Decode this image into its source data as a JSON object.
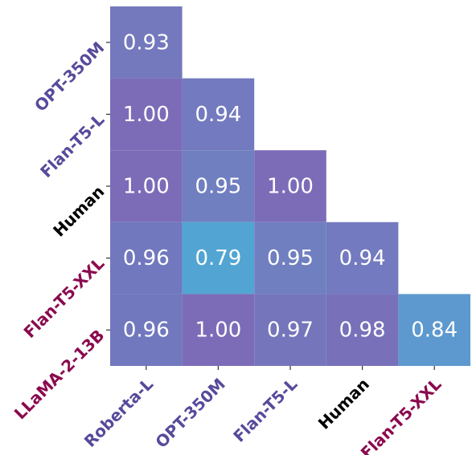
{
  "chart_data": {
    "type": "heatmap",
    "title": "",
    "xlabel": "",
    "ylabel": "",
    "x_categories": [
      "Roberta-L",
      "OPT-350M",
      "Flan-T5-L",
      "Human",
      "Flan-T5-XXL"
    ],
    "y_categories": [
      "OPT-350M",
      "Flan-T5-L",
      "Human",
      "Flan-T5-XXL",
      "LLaMA-2-13B"
    ],
    "values": [
      [
        0.93,
        null,
        null,
        null,
        null
      ],
      [
        1.0,
        0.94,
        null,
        null,
        null
      ],
      [
        1.0,
        0.95,
        1.0,
        null,
        null
      ],
      [
        0.96,
        0.79,
        0.95,
        0.94,
        null
      ],
      [
        0.96,
        1.0,
        0.97,
        0.98,
        0.84
      ]
    ],
    "value_labels": [
      [
        "0.93",
        null,
        null,
        null,
        null
      ],
      [
        "1.00",
        "0.94",
        null,
        null,
        null
      ],
      [
        "1.00",
        "0.95",
        "1.00",
        null,
        null
      ],
      [
        "0.96",
        "0.79",
        "0.95",
        "0.94",
        null
      ],
      [
        "0.96",
        "1.00",
        "0.97",
        "0.98",
        "0.84"
      ]
    ],
    "x_label_colors": [
      "#574a9b",
      "#574a9b",
      "#574a9b",
      "#000000",
      "#8b0a4f"
    ],
    "y_label_colors": [
      "#574a9b",
      "#574a9b",
      "#000000",
      "#8b0a4f",
      "#8b0a4f"
    ],
    "cell_colors": [
      [
        "#7479bd",
        null,
        null,
        null,
        null
      ],
      [
        "#7c6cb8",
        "#737abf",
        null,
        null,
        null
      ],
      [
        "#7c6cb8",
        "#707fbf",
        "#7c6cb8",
        null,
        null
      ],
      [
        "#7178be",
        "#52a5d2",
        "#707fbf",
        "#737abf",
        null
      ],
      [
        "#7178be",
        "#7c6cb8",
        "#7575bb",
        "#7871b9",
        "#5d99ce"
      ]
    ],
    "grid": false,
    "legend": "none"
  }
}
